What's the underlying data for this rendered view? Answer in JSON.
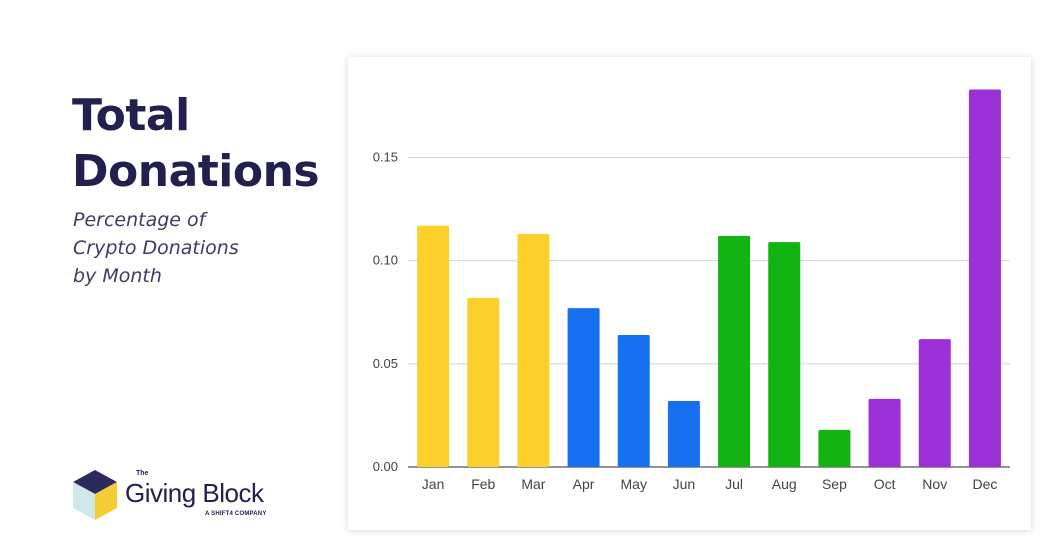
{
  "header": {
    "title_line1": "Total",
    "title_line2": "Donations",
    "subtitle_line1": "Percentage of",
    "subtitle_line2": "Crypto Donations",
    "subtitle_line3": "by Month"
  },
  "logo": {
    "the": "The",
    "name": "Giving Block",
    "tagline": "A SHIFT4 COMPANY",
    "icon": "cube-logo-icon"
  },
  "colors": {
    "title": "#23204f",
    "winter": "#fdd02c",
    "spring": "#1670f0",
    "summer": "#13b313",
    "autumn": "#9b30d6",
    "grid": "#d4d4d4"
  },
  "chart_data": {
    "type": "bar",
    "categories": [
      "Jan",
      "Feb",
      "Mar",
      "Apr",
      "May",
      "Jun",
      "Jul",
      "Aug",
      "Sep",
      "Oct",
      "Nov",
      "Dec"
    ],
    "values": [
      0.117,
      0.082,
      0.113,
      0.077,
      0.064,
      0.032,
      0.112,
      0.109,
      0.018,
      0.033,
      0.062,
      0.183
    ],
    "bar_colors": [
      "#fdd02c",
      "#fdd02c",
      "#fdd02c",
      "#1670f0",
      "#1670f0",
      "#1670f0",
      "#13b313",
      "#13b313",
      "#13b313",
      "#9b30d6",
      "#9b30d6",
      "#9b30d6"
    ],
    "ylim": [
      0,
      0.19
    ],
    "yticks": [
      0.0,
      0.05,
      0.1,
      0.15
    ],
    "ytick_labels": [
      "0.00",
      "0.05",
      "0.10",
      "0.15"
    ],
    "grid": true,
    "xlabel": "",
    "ylabel": ""
  }
}
